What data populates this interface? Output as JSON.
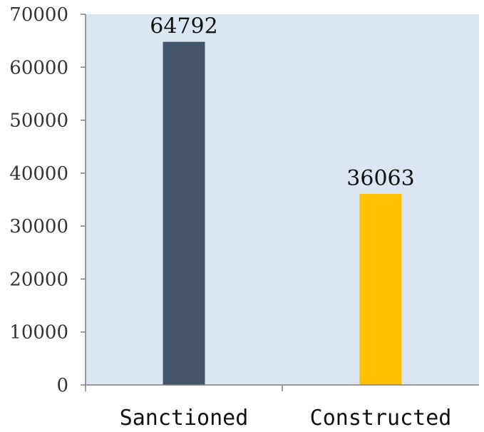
{
  "chart_data": {
    "type": "bar",
    "title": "",
    "xlabel": "",
    "ylabel": "",
    "categories": [
      "Sanctioned",
      "Constructed"
    ],
    "values": [
      64792,
      36063
    ],
    "data_labels": [
      "64792",
      "36063"
    ],
    "ylim": [
      0,
      70000
    ],
    "yticks": [
      0,
      10000,
      20000,
      30000,
      40000,
      50000,
      60000,
      70000
    ],
    "ytick_labels": [
      "0",
      "10000",
      "20000",
      "30000",
      "40000",
      "50000",
      "60000",
      "70000"
    ],
    "bar_colors": [
      "#44546a",
      "#ffc000"
    ],
    "plot_background": "#dce6f2",
    "grid": false,
    "legend": "none"
  }
}
